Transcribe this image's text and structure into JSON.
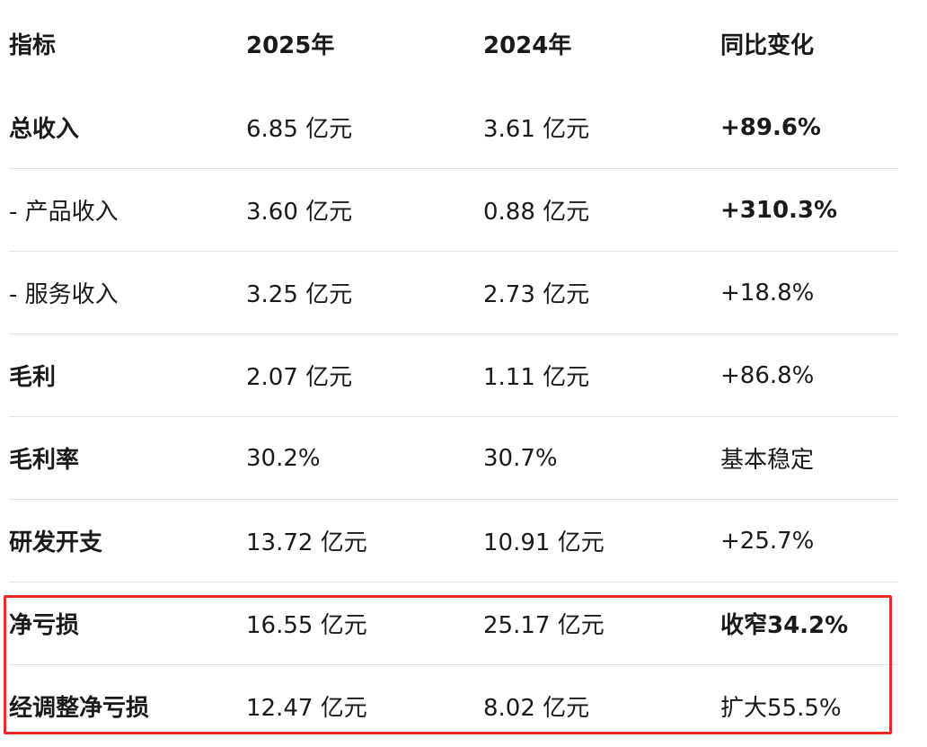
{
  "table": {
    "headers": [
      "指标",
      "2025年",
      "2024年",
      "同比变化"
    ],
    "rows": [
      {
        "cells": [
          "总收入",
          "6.85 亿元",
          "3.61 亿元",
          "+89.6%"
        ],
        "bold_label": true,
        "bold_change": true
      },
      {
        "cells": [
          "- 产品收入",
          "3.60 亿元",
          "0.88 亿元",
          "+310.3%"
        ],
        "bold_label": false,
        "bold_change": true
      },
      {
        "cells": [
          "- 服务收入",
          "3.25 亿元",
          "2.73 亿元",
          "+18.8%"
        ],
        "bold_label": false,
        "bold_change": false
      },
      {
        "cells": [
          "毛利",
          "2.07 亿元",
          "1.11 亿元",
          "+86.8%"
        ],
        "bold_label": true,
        "bold_change": false
      },
      {
        "cells": [
          "毛利率",
          "30.2%",
          "30.7%",
          "基本稳定"
        ],
        "bold_label": true,
        "bold_change": false
      },
      {
        "cells": [
          "研发开支",
          "13.72 亿元",
          "10.91 亿元",
          "+25.7%"
        ],
        "bold_label": true,
        "bold_change": false
      },
      {
        "cells": [
          "净亏损",
          "16.55 亿元",
          "25.17 亿元",
          "收窄34.2%"
        ],
        "bold_label": true,
        "bold_change": true
      },
      {
        "cells": [
          "经调整净亏损",
          "12.47 亿元",
          "8.02 亿元",
          "扩大55.5%"
        ],
        "bold_label": true,
        "bold_change": false
      }
    ]
  },
  "highlight_color": "#ee2a24"
}
